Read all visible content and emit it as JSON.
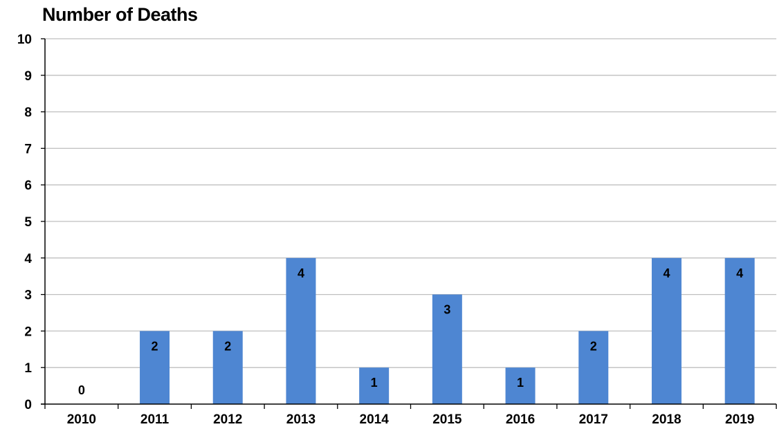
{
  "chart_data": {
    "type": "bar",
    "title": "Number of Deaths",
    "xlabel": "",
    "ylabel": "",
    "categories": [
      "2010",
      "2011",
      "2012",
      "2013",
      "2014",
      "2015",
      "2016",
      "2017",
      "2018",
      "2019"
    ],
    "values": [
      0,
      2,
      2,
      4,
      1,
      3,
      1,
      2,
      4,
      4
    ],
    "data_labels": [
      "0",
      "2",
      "2",
      "4",
      "1",
      "3",
      "1",
      "2",
      "4",
      "4"
    ],
    "yticks": [
      "0",
      "1",
      "2",
      "3",
      "4",
      "5",
      "6",
      "7",
      "8",
      "9",
      "10"
    ],
    "ylim": [
      0,
      10
    ],
    "grid": true,
    "legend": "none",
    "colors": {
      "bar": "#4e86d2",
      "grid": "#bfbfbf",
      "axis": "#000000"
    }
  }
}
